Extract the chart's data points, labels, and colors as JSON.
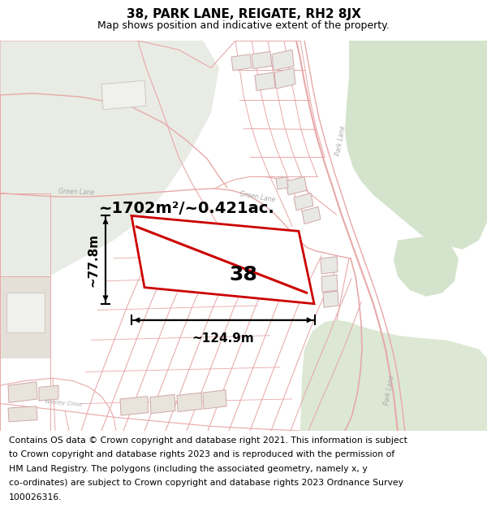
{
  "title": "38, PARK LANE, REIGATE, RH2 8JX",
  "subtitle": "Map shows position and indicative extent of the property.",
  "area_label": "~1702m²/~0.421ac.",
  "width_label": "~124.9m",
  "height_label": "~77.8m",
  "plot_number": "38",
  "footer_lines": [
    "Contains OS data © Crown copyright and database right 2021. This information is subject",
    "to Crown copyright and database rights 2023 and is reproduced with the permission of",
    "HM Land Registry. The polygons (including the associated geometry, namely x, y",
    "co-ordinates) are subject to Crown copyright and database rights 2023 Ordnance Survey",
    "100026316."
  ],
  "map_bg": "#f0ede6",
  "green_top_right": "#d4e4cc",
  "green_bottom_right": "#dce8d4",
  "green_top_left": "#dce8d4",
  "left_grey": "#e8e4dc",
  "road_color": "#e8a8a8",
  "road_lw": 0.8,
  "plot_red": "#cc0000",
  "plot_red_lw": 2.0,
  "bldg_face": "#ececec",
  "bldg_edge": "#d8a8a8",
  "title_fontsize": 11,
  "subtitle_fontsize": 9,
  "area_fontsize": 14,
  "label_fontsize": 11,
  "plot_num_fontsize": 18,
  "footer_fontsize": 7.8,
  "road_label_color": "#aaaaaa",
  "road_label_size": 5.5
}
